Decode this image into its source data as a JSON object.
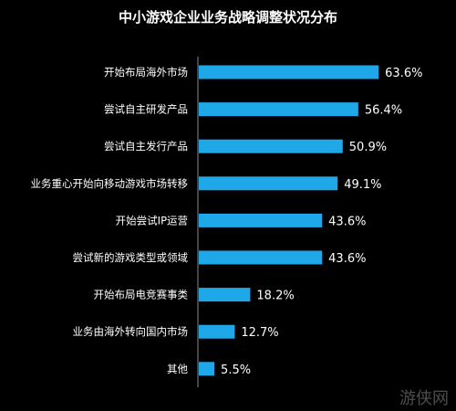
{
  "chart_data": {
    "type": "bar",
    "orientation": "horizontal",
    "title": "中小游戏企业业务战略调整状况分布",
    "categories": [
      "开始布局海外市场",
      "尝试自主研发产品",
      "尝试自主发行产品",
      "业务重心开始向移动游戏市场转移",
      "开始尝试IP运营",
      "尝试新的游戏类型或领域",
      "开始布局电竞赛事类",
      "业务由海外转向国内市场",
      "其他"
    ],
    "values": [
      63.6,
      56.4,
      50.9,
      49.1,
      43.6,
      43.6,
      18.2,
      12.7,
      5.5
    ],
    "value_labels": [
      "63.6%",
      "56.4%",
      "50.9%",
      "49.1%",
      "43.6%",
      "43.6%",
      "18.2%",
      "12.7%",
      "5.5%"
    ],
    "unit": "%",
    "xlim": [
      0,
      100
    ],
    "grid": false,
    "bar_color": "#1fa8e8",
    "background_color": "#000000",
    "text_color": "#ffffff"
  },
  "watermark": {
    "text": "游侠网"
  }
}
